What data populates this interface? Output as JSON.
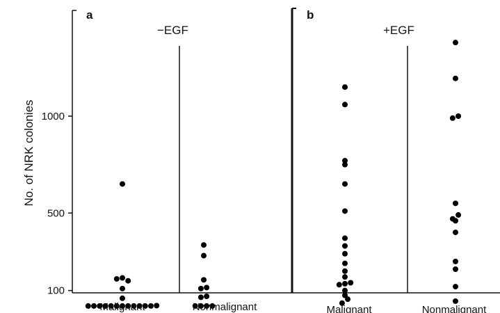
{
  "chart_data": {
    "type": "scatter",
    "ylabel": "No. of NRK colonies",
    "yticks": [
      100,
      500,
      1000
    ],
    "ylim": [
      0,
      1600
    ],
    "panels": [
      {
        "letter": "a",
        "condition": "−EGF",
        "groups": [
          {
            "name": "Malignant",
            "values": [
              20,
              20,
              20,
              20,
              20,
              20,
              20,
              20,
              20,
              20,
              20,
              20,
              22,
              60,
              110,
              160,
              165,
              150,
              650
            ]
          },
          {
            "name": "Nonmalignant",
            "values": [
              20,
              20,
              20,
              20,
              65,
              70,
              110,
              115,
              155,
              280,
              335
            ]
          }
        ]
      },
      {
        "letter": "b",
        "condition": "+EGF",
        "groups": [
          {
            "name": "Malignant",
            "values": [
              35,
              55,
              75,
              100,
              130,
              135,
              140,
              170,
              200,
              240,
              290,
              330,
              370,
              510,
              650,
              750,
              770,
              1060,
              1150
            ]
          },
          {
            "name": "Nonmalignant",
            "values": [
              45,
              120,
              210,
              250,
              400,
              460,
              470,
              490,
              550,
              990,
              1000,
              1195,
              1380
            ]
          }
        ]
      }
    ]
  }
}
